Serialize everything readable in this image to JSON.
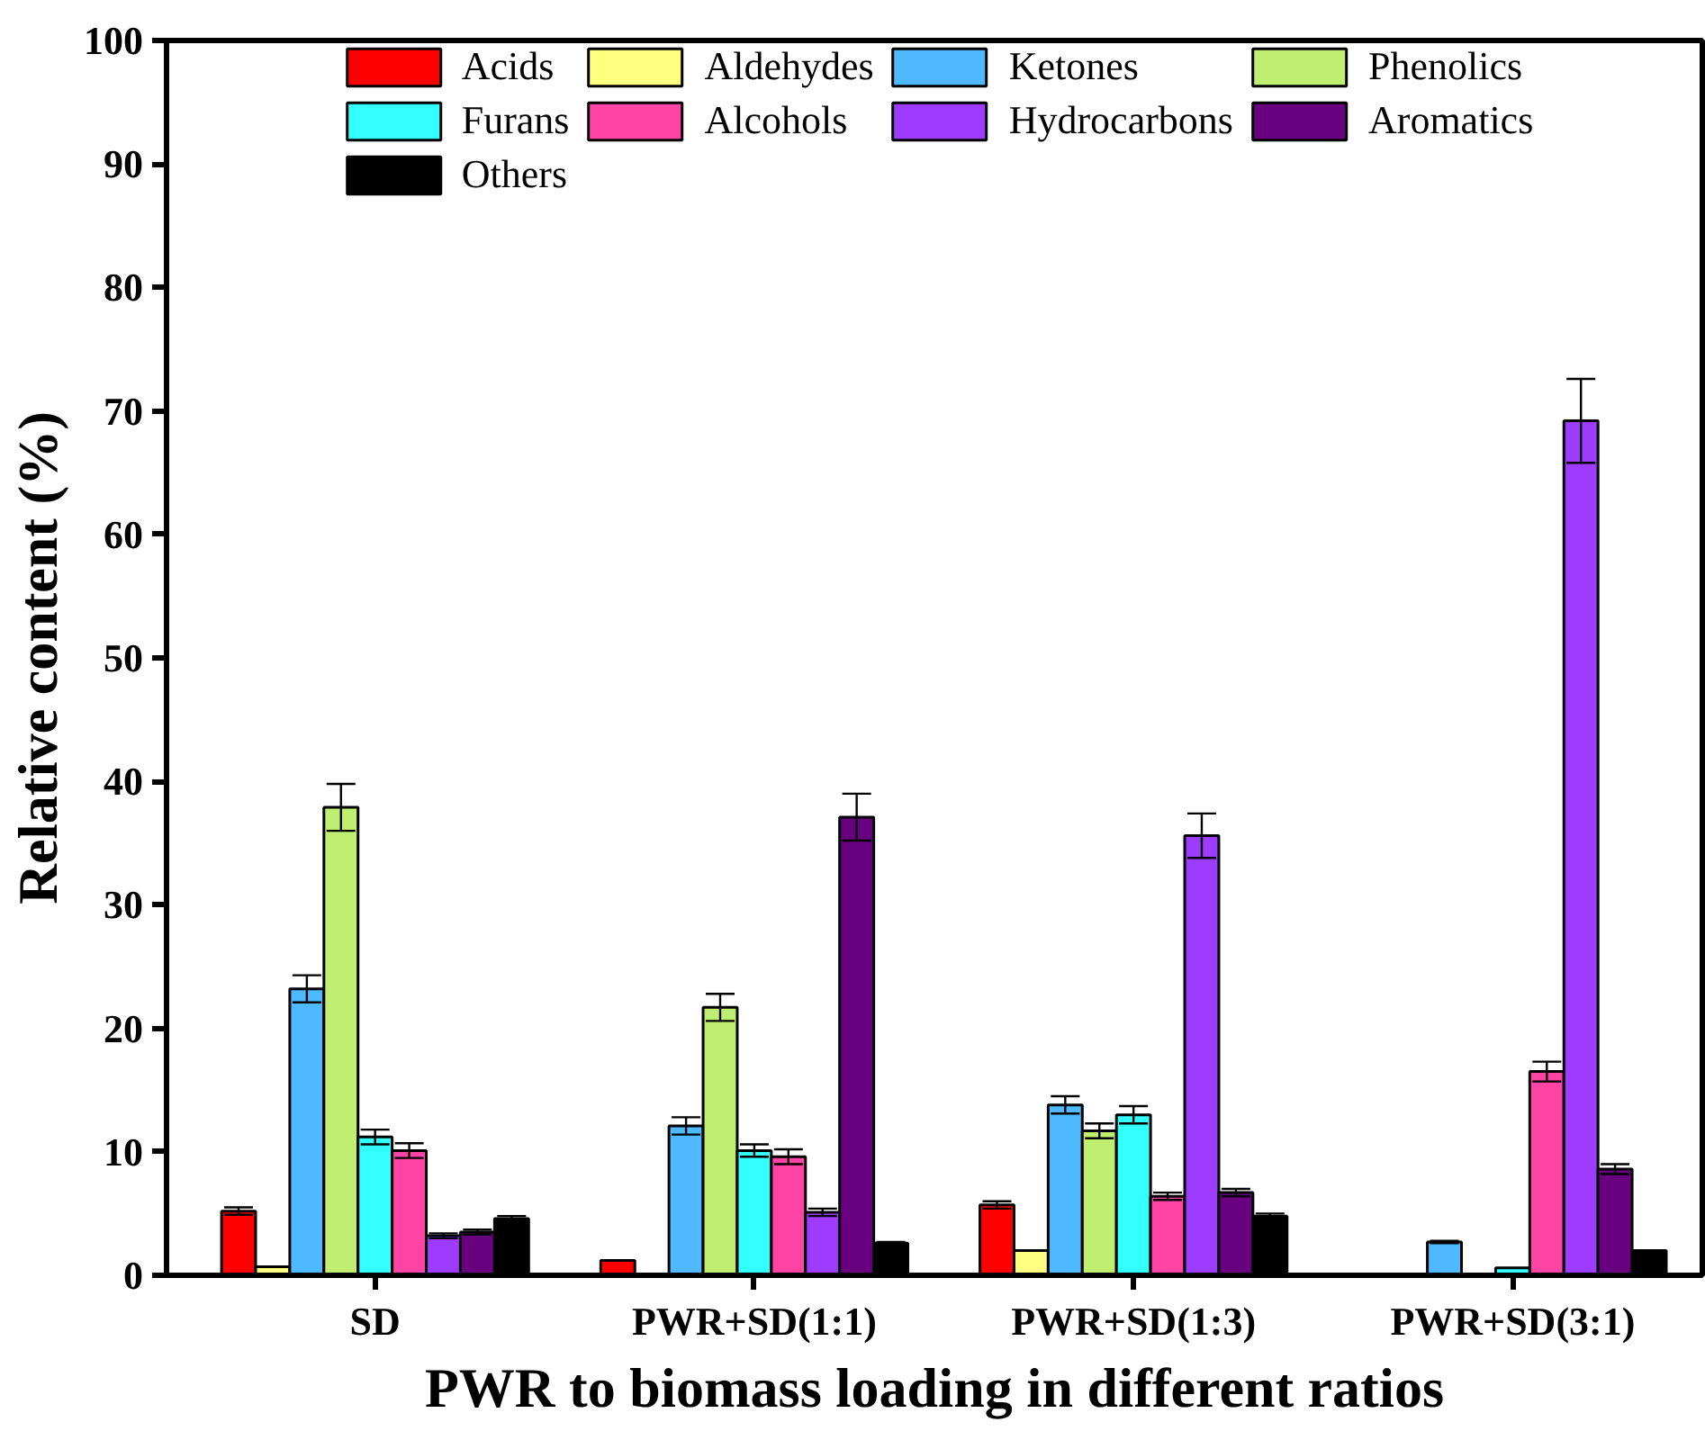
{
  "chart_data": {
    "type": "bar",
    "xlabel": "PWR to biomass loading in different ratios",
    "ylabel": "Relative content (%)",
    "categories": [
      "SD",
      "PWR+SD(1:1)",
      "PWR+SD(1:3)",
      "PWR+SD(3:1)"
    ],
    "ylim": [
      0,
      100
    ],
    "yticks": [
      0,
      10,
      20,
      30,
      40,
      50,
      60,
      70,
      80,
      90,
      100
    ],
    "grid": false,
    "legend": "top",
    "series": [
      {
        "name": "Acids",
        "color": "#ff0000",
        "values": [
          5.2,
          1.2,
          5.7,
          null
        ],
        "errors": [
          0.3,
          null,
          0.3,
          null
        ]
      },
      {
        "name": "Aldehydes",
        "color": "#ffff80",
        "values": [
          0.7,
          null,
          2.0,
          null
        ],
        "errors": [
          null,
          null,
          null,
          null
        ]
      },
      {
        "name": "Ketones",
        "color": "#4fb9ff",
        "values": [
          23.2,
          12.1,
          13.8,
          2.7
        ],
        "errors": [
          1.1,
          0.7,
          0.7,
          0.1
        ]
      },
      {
        "name": "Phenolics",
        "color": "#bfee70",
        "values": [
          37.9,
          21.7,
          11.7,
          null
        ],
        "errors": [
          1.9,
          1.1,
          0.6,
          null
        ]
      },
      {
        "name": "Furans",
        "color": "#33ffff",
        "values": [
          11.2,
          10.1,
          13.0,
          0.6
        ],
        "errors": [
          0.6,
          0.5,
          0.7,
          null
        ]
      },
      {
        "name": "Alcohols",
        "color": "#ff44a6",
        "values": [
          10.1,
          9.6,
          6.4,
          16.5
        ],
        "errors": [
          0.6,
          0.6,
          0.3,
          0.8
        ]
      },
      {
        "name": "Hydrocarbons",
        "color": "#9d3cff",
        "values": [
          3.2,
          5.1,
          35.6,
          69.2
        ],
        "errors": [
          0.2,
          0.3,
          1.8,
          3.4
        ]
      },
      {
        "name": "Aromatics",
        "color": "#680080",
        "values": [
          3.5,
          37.1,
          6.7,
          8.6
        ],
        "errors": [
          0.2,
          1.9,
          0.3,
          0.4
        ]
      },
      {
        "name": "Others",
        "color": "#000000",
        "values": [
          4.6,
          2.6,
          4.8,
          2.0
        ],
        "errors": [
          0.2,
          0.1,
          0.2,
          null
        ]
      }
    ]
  }
}
